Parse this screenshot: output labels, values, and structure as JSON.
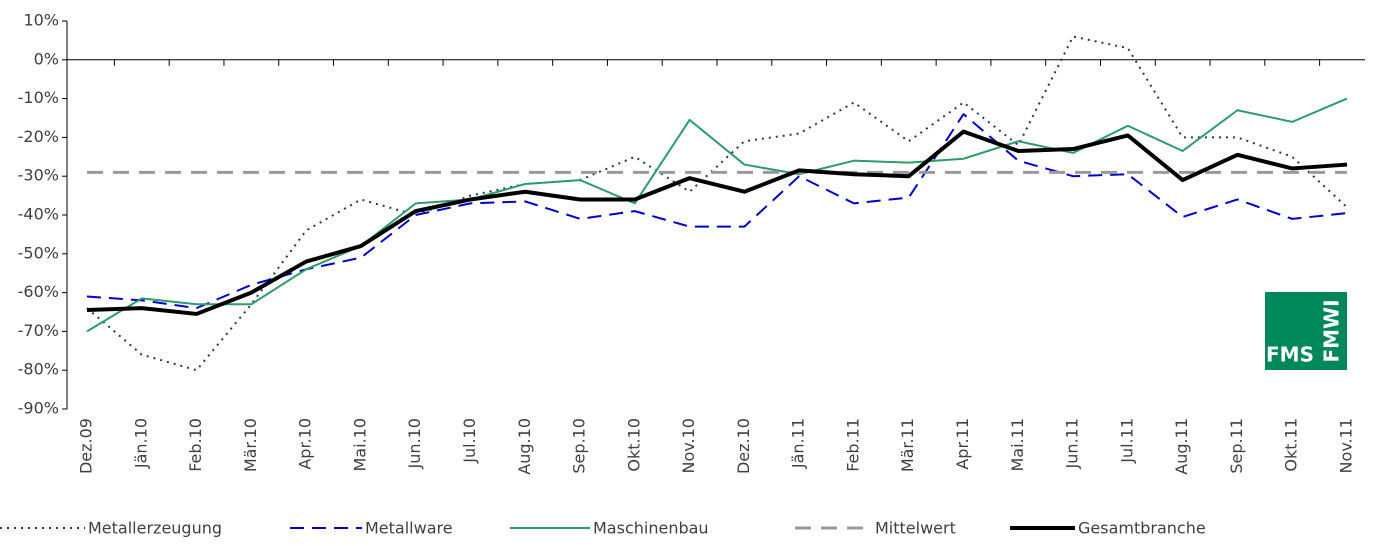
{
  "chart_data": {
    "type": "line",
    "categories": [
      "Dez.09",
      "Jän.10",
      "Feb.10",
      "Mär.10",
      "Apr.10",
      "Mai.10",
      "Jun.10",
      "Jul.10",
      "Aug.10",
      "Sep.10",
      "Okt.10",
      "Nov.10",
      "Dez.10",
      "Jän.11",
      "Feb.11",
      "Mär.11",
      "Apr.11",
      "Mai.11",
      "Jun.11",
      "Jul.11",
      "Aug.11",
      "Sep.11",
      "Okt.11",
      "Nov.11"
    ],
    "series": [
      {
        "name": "Metallerzeugung",
        "color": "#1f3864",
        "dash": "dotted",
        "values": [
          -64,
          -76,
          -80,
          -63,
          -44,
          -36,
          -40,
          -35,
          -32,
          -31,
          -25,
          -34,
          -21,
          -19,
          -11,
          -21,
          -11,
          -22,
          6,
          3,
          -20,
          -20,
          -25,
          -38
        ]
      },
      {
        "name": "Metallware",
        "color": "#0000cc",
        "dash": "dashed",
        "values": [
          -61,
          -62,
          -64,
          -58,
          -54,
          -51,
          -40,
          -37,
          -36.5,
          -41,
          -39,
          -43,
          -43,
          -30,
          -37,
          -35.5,
          -14,
          -26,
          -30,
          -29.5,
          -40.5,
          -36,
          -41,
          -39.5
        ]
      },
      {
        "name": "Maschinenbau",
        "color": "#2e9b6a",
        "dash": "solid",
        "values": [
          -70,
          -61.5,
          -63,
          -63,
          -54,
          -48,
          -37,
          -36,
          -32,
          -31,
          -37,
          -15.5,
          -27,
          -29.5,
          -26,
          -26.5,
          -25.5,
          -21,
          -24,
          -17,
          -23.5,
          -13,
          -16,
          -10
        ]
      },
      {
        "name": "Mittelwert",
        "color": "#999999",
        "dash": "longdash",
        "values": [
          -29,
          -29,
          -29,
          -29,
          -29,
          -29,
          -29,
          -29,
          -29,
          -29,
          -29,
          -29,
          -29,
          -29,
          -29,
          -29,
          -29,
          -29,
          -29,
          -29,
          -29,
          -29,
          -29,
          -29
        ]
      },
      {
        "name": "Gesamtbranche",
        "color": "#000000",
        "dash": "bold",
        "values": [
          -64.5,
          -64,
          -65.5,
          -60,
          -52,
          -48,
          -39,
          -36,
          -34,
          -36,
          -36,
          -30.5,
          -34,
          -28.5,
          -29.5,
          -30,
          -18.5,
          -23.5,
          -23,
          -19.5,
          -31,
          -24.5,
          -28,
          -27
        ]
      }
    ],
    "ylim": [
      -90,
      10
    ],
    "yticks": [
      {
        "value": 10,
        "label": "10%"
      },
      {
        "value": 0,
        "label": "0%"
      },
      {
        "value": -10,
        "label": "-10%"
      },
      {
        "value": -20,
        "label": "-20%"
      },
      {
        "value": -30,
        "label": "-30%"
      },
      {
        "value": -40,
        "label": "-40%"
      },
      {
        "value": -50,
        "label": "-50%"
      },
      {
        "value": -60,
        "label": "-60%"
      },
      {
        "value": -70,
        "label": "-70%"
      },
      {
        "value": -80,
        "label": "-80%"
      },
      {
        "value": -90,
        "label": "-90%"
      }
    ],
    "legend": "bottom",
    "logo": {
      "left": "FMS",
      "right": "FMWI"
    }
  }
}
